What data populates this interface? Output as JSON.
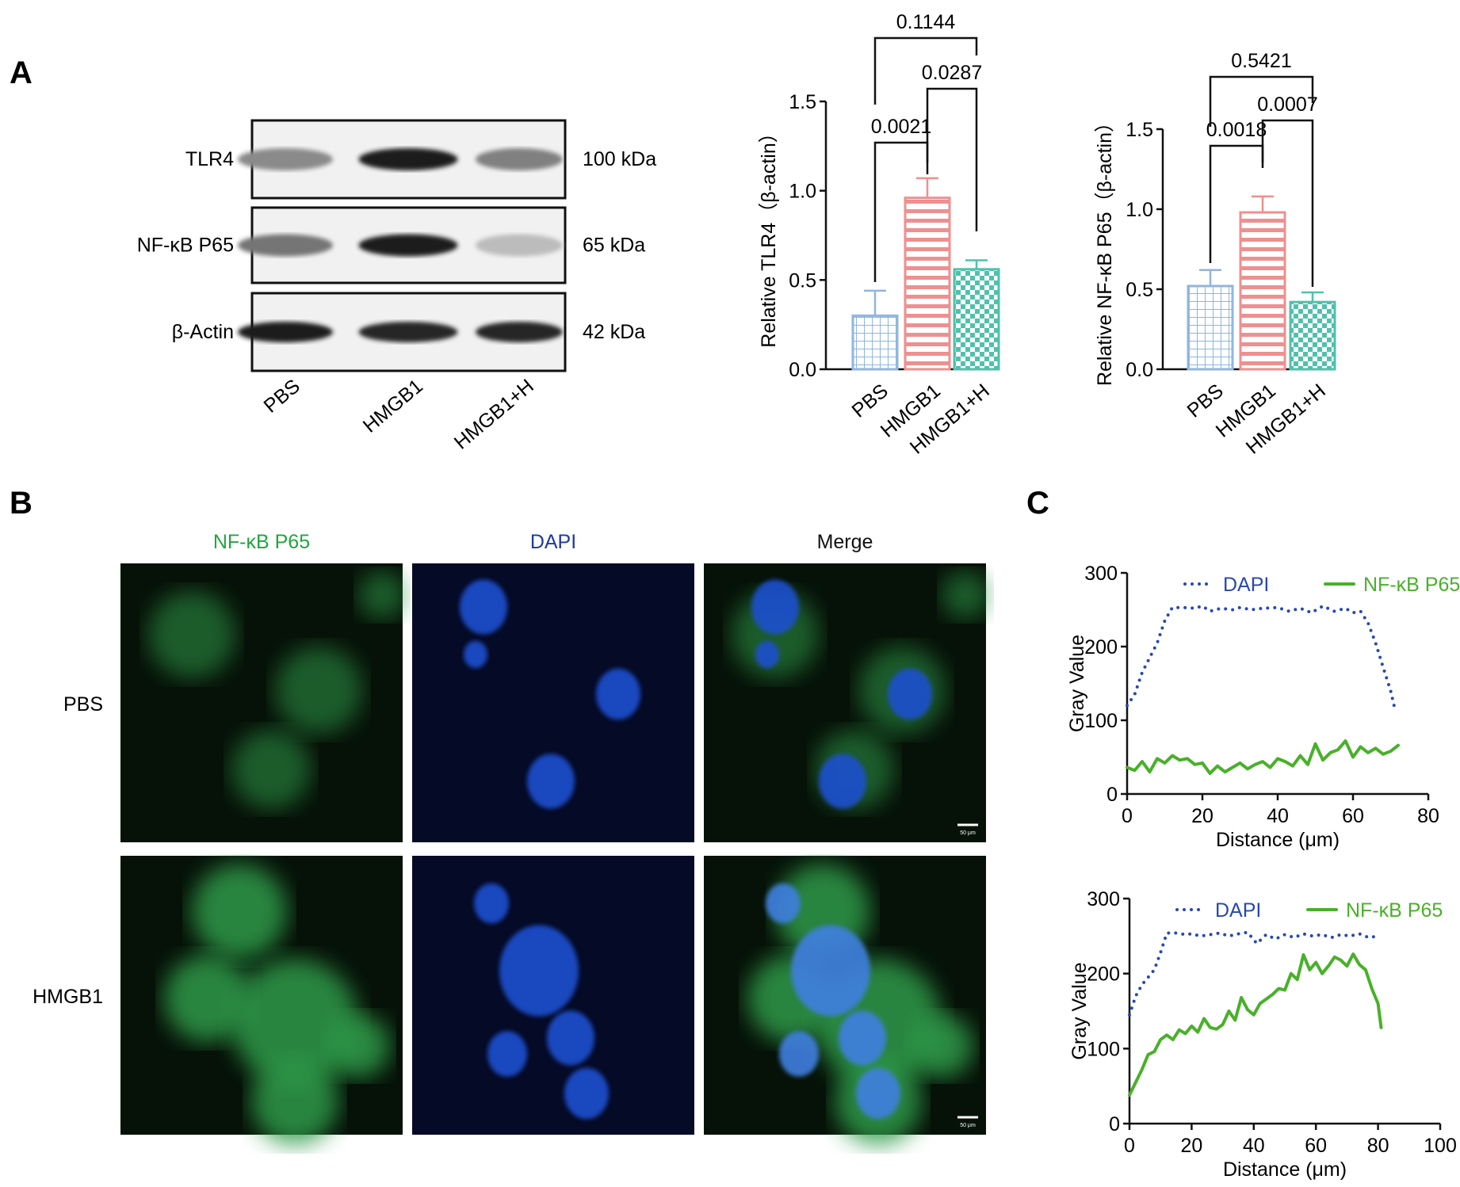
{
  "panels": {
    "A": "A",
    "B": "B",
    "C": "C"
  },
  "blot": {
    "rows": [
      {
        "label": "TLR4",
        "kda": "100 kDa"
      },
      {
        "label": "NF-κB P65",
        "kda": "65 kDa"
      },
      {
        "label": "β-Actin",
        "kda": "42 kDa"
      }
    ],
    "lanes": [
      "PBS",
      "HMGB1",
      "HMGB1+H"
    ],
    "intensity": [
      [
        0.45,
        0.95,
        0.5
      ],
      [
        0.55,
        0.95,
        0.22
      ],
      [
        0.95,
        0.92,
        0.92
      ]
    ]
  },
  "if_panel": {
    "channels": [
      {
        "label": "NF-κB P65",
        "color": "#22a53f"
      },
      {
        "label": "DAPI",
        "color": "#1f3a9e"
      },
      {
        "label": "Merge",
        "color": "#111111"
      }
    ],
    "rows": [
      "PBS",
      "HMGB1"
    ],
    "scale_bar": "50 μm"
  },
  "chart_data": [
    {
      "type": "bar",
      "categories": [
        "PBS",
        "HMGB1",
        "HMGB1+H"
      ],
      "values": [
        0.3,
        0.96,
        0.56
      ],
      "errors": [
        0.14,
        0.11,
        0.05
      ],
      "ylabel": "Relative TLR4（β-actin）",
      "ylim": [
        0,
        1.5
      ],
      "yticks": [
        "0.0",
        "0.5",
        "1.0",
        "1.5"
      ],
      "colors": [
        "#8fb6df",
        "#ef8f8f",
        "#4fc1ac"
      ],
      "pvalues": [
        {
          "label": "0.0021",
          "from": 0,
          "to": 1
        },
        {
          "label": "0.0287",
          "from": 1,
          "to": 2
        },
        {
          "label": "0.1144",
          "from": 0,
          "to": 2
        }
      ]
    },
    {
      "type": "bar",
      "categories": [
        "PBS",
        "HMGB1",
        "HMGB1+H"
      ],
      "values": [
        0.52,
        0.98,
        0.42
      ],
      "errors": [
        0.1,
        0.1,
        0.06
      ],
      "ylabel": "Relative NF-κB P65（β-actin）",
      "ylim": [
        0,
        1.5
      ],
      "yticks": [
        "0.0",
        "0.5",
        "1.0",
        "1.5"
      ],
      "colors": [
        "#8fb6df",
        "#ef8f8f",
        "#4fc1ac"
      ],
      "pvalues": [
        {
          "label": "0.0018",
          "from": 0,
          "to": 1
        },
        {
          "label": "0.0007",
          "from": 1,
          "to": 2
        },
        {
          "label": "0.5421",
          "from": 0,
          "to": 2
        }
      ]
    },
    {
      "type": "line",
      "xlabel": "Distance (μm)",
      "ylabel": "Gray Value",
      "xlim": [
        0,
        80
      ],
      "ylim": [
        0,
        300
      ],
      "xticks": [
        "0",
        "20",
        "40",
        "60",
        "80"
      ],
      "yticks": [
        "0",
        "100",
        "200",
        "300"
      ],
      "legend_position": "top",
      "series": [
        {
          "name": "DAPI",
          "color": "#2848b0",
          "style": "dotted",
          "x": [
            0,
            2,
            4,
            6,
            8,
            10,
            12,
            15,
            18,
            20,
            22,
            25,
            28,
            30,
            33,
            36,
            40,
            43,
            46,
            49,
            52,
            55,
            58,
            60,
            62,
            64,
            66,
            68,
            70,
            71
          ],
          "y": [
            120,
            135,
            165,
            185,
            205,
            235,
            253,
            253,
            252,
            255,
            248,
            252,
            250,
            253,
            250,
            252,
            253,
            248,
            252,
            246,
            255,
            248,
            252,
            246,
            248,
            232,
            205,
            172,
            140,
            118
          ]
        },
        {
          "name": "NF-κB P65",
          "color": "#49b02a",
          "style": "solid",
          "x": [
            0,
            2,
            4,
            6,
            8,
            10,
            12,
            14,
            16,
            18,
            20,
            22,
            24,
            26,
            28,
            30,
            32,
            34,
            36,
            38,
            40,
            42,
            44,
            46,
            48,
            50,
            52,
            54,
            56,
            58,
            60,
            62,
            64,
            66,
            68,
            70,
            72
          ],
          "y": [
            36,
            32,
            44,
            30,
            48,
            42,
            52,
            46,
            48,
            40,
            42,
            28,
            38,
            30,
            36,
            42,
            34,
            40,
            44,
            36,
            48,
            44,
            38,
            52,
            40,
            68,
            46,
            56,
            60,
            72,
            50,
            64,
            56,
            62,
            54,
            58,
            66
          ]
        }
      ]
    },
    {
      "type": "line",
      "xlabel": "Distance (μm)",
      "ylabel": "Gray Value",
      "xlim": [
        0,
        100
      ],
      "ylim": [
        0,
        300
      ],
      "xticks": [
        "0",
        "20",
        "40",
        "60",
        "80",
        "100"
      ],
      "yticks": [
        "0",
        "100",
        "200",
        "300"
      ],
      "legend_position": "top",
      "series": [
        {
          "name": "DAPI",
          "color": "#2848b0",
          "style": "dotted",
          "x": [
            0,
            2,
            4,
            6,
            8,
            10,
            12,
            15,
            18,
            20,
            23,
            26,
            29,
            32,
            35,
            38,
            41,
            44,
            47,
            50,
            53,
            56,
            59,
            62,
            65,
            68,
            71,
            74,
            77,
            80
          ],
          "y": [
            145,
            170,
            185,
            195,
            205,
            228,
            254,
            254,
            252,
            253,
            250,
            252,
            254,
            250,
            253,
            255,
            240,
            252,
            246,
            252,
            248,
            253,
            250,
            252,
            248,
            252,
            250,
            253,
            248,
            250
          ]
        },
        {
          "name": "NF-κB P65",
          "color": "#49b02a",
          "style": "solid",
          "x": [
            0,
            2,
            4,
            6,
            8,
            10,
            12,
            14,
            16,
            18,
            20,
            22,
            24,
            26,
            28,
            30,
            32,
            34,
            36,
            38,
            40,
            42,
            44,
            46,
            48,
            50,
            52,
            54,
            56,
            58,
            60,
            62,
            64,
            66,
            68,
            70,
            72,
            74,
            76,
            78,
            80,
            81
          ],
          "y": [
            38,
            55,
            72,
            92,
            96,
            112,
            118,
            112,
            125,
            120,
            130,
            122,
            140,
            128,
            126,
            132,
            150,
            138,
            168,
            152,
            145,
            160,
            166,
            172,
            180,
            178,
            200,
            192,
            225,
            205,
            215,
            200,
            210,
            222,
            218,
            210,
            226,
            212,
            205,
            180,
            160,
            128
          ]
        }
      ]
    }
  ]
}
